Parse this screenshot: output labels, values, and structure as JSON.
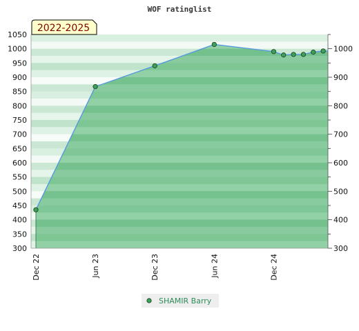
{
  "chart_data": {
    "type": "area",
    "title": "WOF ratinglist",
    "badge": "2022-2025",
    "y_left": {
      "min": 300,
      "max": 1050,
      "ticks": [
        300,
        350,
        400,
        450,
        500,
        550,
        600,
        650,
        700,
        750,
        800,
        850,
        900,
        950,
        1000,
        1050
      ]
    },
    "y_right": {
      "ticks": [
        300,
        400,
        500,
        600,
        700,
        800,
        900,
        1000
      ]
    },
    "x_ticks": [
      "Dec 22",
      "Jun 23",
      "Dec 23",
      "Jun 24",
      "Dec 24"
    ],
    "grid": false,
    "legend_position": "bottom",
    "series": [
      {
        "name": "SHAMIR Barry",
        "points": [
          {
            "x": "2022-12",
            "y": 435
          },
          {
            "x": "2023-06",
            "y": 867
          },
          {
            "x": "2023-12",
            "y": 940
          },
          {
            "x": "2024-06",
            "y": 1015
          },
          {
            "x": "2024-12",
            "y": 990
          },
          {
            "x": "2025-01",
            "y": 978
          },
          {
            "x": "2025-02",
            "y": 980
          },
          {
            "x": "2025-03",
            "y": 980
          },
          {
            "x": "2025-04",
            "y": 988
          },
          {
            "x": "2025-05",
            "y": 992
          }
        ]
      }
    ]
  },
  "colors": {
    "line": "#5599dd",
    "area": "#7cc793",
    "marker": "#3ca15a",
    "badge_bg": "#ffffcc",
    "badge_text": "#800000",
    "legend_text": "#2e8b57"
  }
}
